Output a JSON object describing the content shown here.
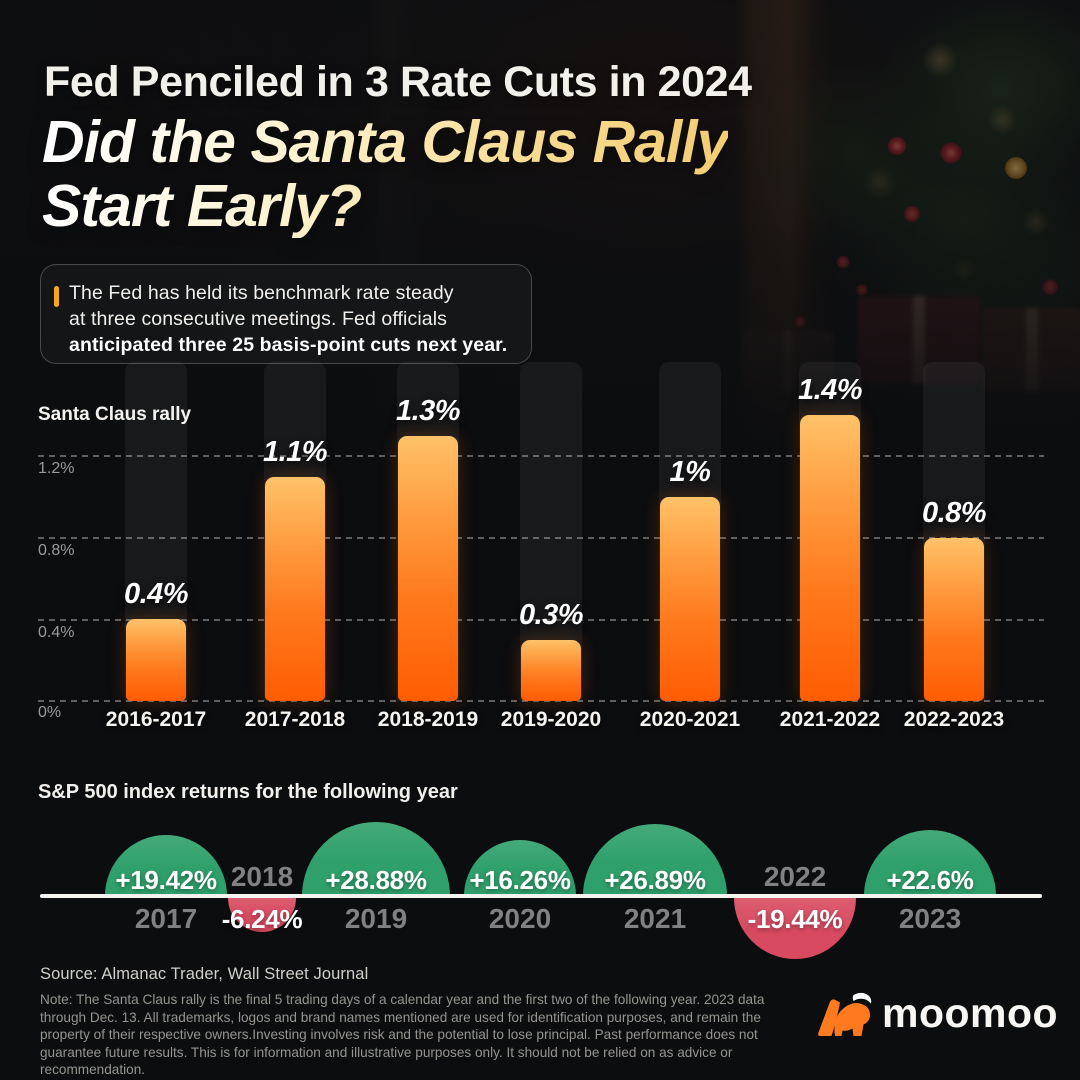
{
  "header": {
    "kicker": "Fed Penciled in 3 Rate Cuts in 2024",
    "headline_line1": "Did the Santa Claus Rally",
    "headline_line2": "Start Early?"
  },
  "callout": {
    "line1": "The Fed has held its benchmark rate steady",
    "line2": "at three consecutive meetings. Fed officials",
    "line3_bold": "anticipated three 25 basis-point cuts next year."
  },
  "chart_data": [
    {
      "type": "bar",
      "title": "Santa Claus rally",
      "categories": [
        "2016-2017",
        "2017-2018",
        "2018-2019",
        "2019-2020",
        "2020-2021",
        "2021-2022",
        "2022-2023"
      ],
      "values": [
        0.4,
        1.1,
        1.3,
        0.3,
        1.0,
        1.4,
        0.8
      ],
      "value_labels": [
        "0.4%",
        "1.1%",
        "1.3%",
        "0.3%",
        "1%",
        "1.4%",
        "0.8%"
      ],
      "y_ticks": [
        "0%",
        "0.4%",
        "0.8%",
        "1.2%"
      ],
      "ylim": [
        0,
        1.5
      ],
      "grid": "horizontal-dashed",
      "bar_gradient": [
        "#FFC269",
        "#FF5C03"
      ]
    },
    {
      "type": "bubble",
      "title": "S&P 500 index returns for the following year",
      "categories": [
        "2017",
        "2018",
        "2019",
        "2020",
        "2021",
        "2022",
        "2023"
      ],
      "values": [
        19.42,
        -6.24,
        28.88,
        16.26,
        26.89,
        -19.44,
        22.6
      ],
      "value_labels": [
        "+19.42%",
        "-6.24%",
        "+28.88%",
        "+16.26%",
        "+26.89%",
        "-19.44%",
        "+22.6%"
      ],
      "positive_color": "#2FA06B",
      "negative_color": "#D84A60",
      "layout": "semicircles above baseline for gains, below for losses; radius scales with sqrt(|value|)"
    }
  ],
  "footer": {
    "source": "Source: Almanac Trader, Wall Street Journal",
    "note": "Note: The Santa Claus rally is the final 5 trading days of a calendar year and the first two of the following year. 2023 data through Dec. 13. All trademarks, logos and brand names mentioned are used for identification purposes, and remain the property of their respective owners.Investing involves risk and the potential to lose principal. Past performance does not guarantee future results. This is for information and illustrative purposes only. It should not be relied on as advice or recommendation.",
    "brand": "moomoo"
  }
}
